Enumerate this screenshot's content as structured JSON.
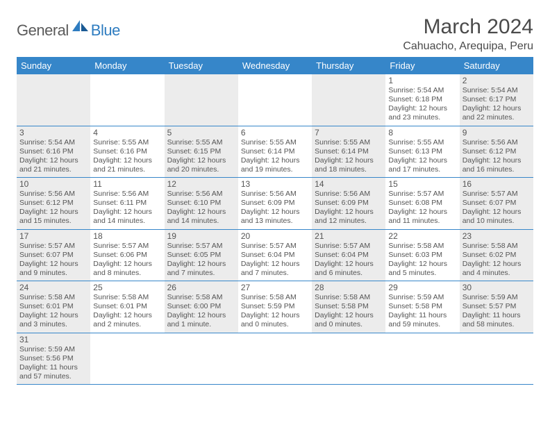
{
  "logo": {
    "part1": "General",
    "part2": "Blue"
  },
  "title": "March 2024",
  "location": "Cahuacho, Arequipa, Peru",
  "weekdays": [
    "Sunday",
    "Monday",
    "Tuesday",
    "Wednesday",
    "Thursday",
    "Friday",
    "Saturday"
  ],
  "colors": {
    "header_bg": "#3686c9",
    "header_text": "#ffffff",
    "shade_bg": "#ececec",
    "border": "#3686c9",
    "text": "#4a4a4a",
    "logo_blue": "#2e7cc0"
  },
  "weeks": [
    [
      {
        "shade": true
      },
      {},
      {
        "shade": true
      },
      {},
      {
        "shade": true
      },
      {
        "num": "1",
        "sunrise": "Sunrise: 5:54 AM",
        "sunset": "Sunset: 6:18 PM",
        "day1": "Daylight: 12 hours",
        "day2": "and 23 minutes."
      },
      {
        "shade": true,
        "num": "2",
        "sunrise": "Sunrise: 5:54 AM",
        "sunset": "Sunset: 6:17 PM",
        "day1": "Daylight: 12 hours",
        "day2": "and 22 minutes."
      }
    ],
    [
      {
        "shade": true,
        "num": "3",
        "sunrise": "Sunrise: 5:54 AM",
        "sunset": "Sunset: 6:16 PM",
        "day1": "Daylight: 12 hours",
        "day2": "and 21 minutes."
      },
      {
        "num": "4",
        "sunrise": "Sunrise: 5:55 AM",
        "sunset": "Sunset: 6:16 PM",
        "day1": "Daylight: 12 hours",
        "day2": "and 21 minutes."
      },
      {
        "shade": true,
        "num": "5",
        "sunrise": "Sunrise: 5:55 AM",
        "sunset": "Sunset: 6:15 PM",
        "day1": "Daylight: 12 hours",
        "day2": "and 20 minutes."
      },
      {
        "num": "6",
        "sunrise": "Sunrise: 5:55 AM",
        "sunset": "Sunset: 6:14 PM",
        "day1": "Daylight: 12 hours",
        "day2": "and 19 minutes."
      },
      {
        "shade": true,
        "num": "7",
        "sunrise": "Sunrise: 5:55 AM",
        "sunset": "Sunset: 6:14 PM",
        "day1": "Daylight: 12 hours",
        "day2": "and 18 minutes."
      },
      {
        "num": "8",
        "sunrise": "Sunrise: 5:55 AM",
        "sunset": "Sunset: 6:13 PM",
        "day1": "Daylight: 12 hours",
        "day2": "and 17 minutes."
      },
      {
        "shade": true,
        "num": "9",
        "sunrise": "Sunrise: 5:56 AM",
        "sunset": "Sunset: 6:12 PM",
        "day1": "Daylight: 12 hours",
        "day2": "and 16 minutes."
      }
    ],
    [
      {
        "shade": true,
        "num": "10",
        "sunrise": "Sunrise: 5:56 AM",
        "sunset": "Sunset: 6:12 PM",
        "day1": "Daylight: 12 hours",
        "day2": "and 15 minutes."
      },
      {
        "num": "11",
        "sunrise": "Sunrise: 5:56 AM",
        "sunset": "Sunset: 6:11 PM",
        "day1": "Daylight: 12 hours",
        "day2": "and 14 minutes."
      },
      {
        "shade": true,
        "num": "12",
        "sunrise": "Sunrise: 5:56 AM",
        "sunset": "Sunset: 6:10 PM",
        "day1": "Daylight: 12 hours",
        "day2": "and 14 minutes."
      },
      {
        "num": "13",
        "sunrise": "Sunrise: 5:56 AM",
        "sunset": "Sunset: 6:09 PM",
        "day1": "Daylight: 12 hours",
        "day2": "and 13 minutes."
      },
      {
        "shade": true,
        "num": "14",
        "sunrise": "Sunrise: 5:56 AM",
        "sunset": "Sunset: 6:09 PM",
        "day1": "Daylight: 12 hours",
        "day2": "and 12 minutes."
      },
      {
        "num": "15",
        "sunrise": "Sunrise: 5:57 AM",
        "sunset": "Sunset: 6:08 PM",
        "day1": "Daylight: 12 hours",
        "day2": "and 11 minutes."
      },
      {
        "shade": true,
        "num": "16",
        "sunrise": "Sunrise: 5:57 AM",
        "sunset": "Sunset: 6:07 PM",
        "day1": "Daylight: 12 hours",
        "day2": "and 10 minutes."
      }
    ],
    [
      {
        "shade": true,
        "num": "17",
        "sunrise": "Sunrise: 5:57 AM",
        "sunset": "Sunset: 6:07 PM",
        "day1": "Daylight: 12 hours",
        "day2": "and 9 minutes."
      },
      {
        "num": "18",
        "sunrise": "Sunrise: 5:57 AM",
        "sunset": "Sunset: 6:06 PM",
        "day1": "Daylight: 12 hours",
        "day2": "and 8 minutes."
      },
      {
        "shade": true,
        "num": "19",
        "sunrise": "Sunrise: 5:57 AM",
        "sunset": "Sunset: 6:05 PM",
        "day1": "Daylight: 12 hours",
        "day2": "and 7 minutes."
      },
      {
        "num": "20",
        "sunrise": "Sunrise: 5:57 AM",
        "sunset": "Sunset: 6:04 PM",
        "day1": "Daylight: 12 hours",
        "day2": "and 7 minutes."
      },
      {
        "shade": true,
        "num": "21",
        "sunrise": "Sunrise: 5:57 AM",
        "sunset": "Sunset: 6:04 PM",
        "day1": "Daylight: 12 hours",
        "day2": "and 6 minutes."
      },
      {
        "num": "22",
        "sunrise": "Sunrise: 5:58 AM",
        "sunset": "Sunset: 6:03 PM",
        "day1": "Daylight: 12 hours",
        "day2": "and 5 minutes."
      },
      {
        "shade": true,
        "num": "23",
        "sunrise": "Sunrise: 5:58 AM",
        "sunset": "Sunset: 6:02 PM",
        "day1": "Daylight: 12 hours",
        "day2": "and 4 minutes."
      }
    ],
    [
      {
        "shade": true,
        "num": "24",
        "sunrise": "Sunrise: 5:58 AM",
        "sunset": "Sunset: 6:01 PM",
        "day1": "Daylight: 12 hours",
        "day2": "and 3 minutes."
      },
      {
        "num": "25",
        "sunrise": "Sunrise: 5:58 AM",
        "sunset": "Sunset: 6:01 PM",
        "day1": "Daylight: 12 hours",
        "day2": "and 2 minutes."
      },
      {
        "shade": true,
        "num": "26",
        "sunrise": "Sunrise: 5:58 AM",
        "sunset": "Sunset: 6:00 PM",
        "day1": "Daylight: 12 hours",
        "day2": "and 1 minute."
      },
      {
        "num": "27",
        "sunrise": "Sunrise: 5:58 AM",
        "sunset": "Sunset: 5:59 PM",
        "day1": "Daylight: 12 hours",
        "day2": "and 0 minutes."
      },
      {
        "shade": true,
        "num": "28",
        "sunrise": "Sunrise: 5:58 AM",
        "sunset": "Sunset: 5:58 PM",
        "day1": "Daylight: 12 hours",
        "day2": "and 0 minutes."
      },
      {
        "num": "29",
        "sunrise": "Sunrise: 5:59 AM",
        "sunset": "Sunset: 5:58 PM",
        "day1": "Daylight: 11 hours",
        "day2": "and 59 minutes."
      },
      {
        "shade": true,
        "num": "30",
        "sunrise": "Sunrise: 5:59 AM",
        "sunset": "Sunset: 5:57 PM",
        "day1": "Daylight: 11 hours",
        "day2": "and 58 minutes."
      }
    ],
    [
      {
        "shade": true,
        "num": "31",
        "sunrise": "Sunrise: 5:59 AM",
        "sunset": "Sunset: 5:56 PM",
        "day1": "Daylight: 11 hours",
        "day2": "and 57 minutes."
      },
      {},
      {},
      {},
      {},
      {},
      {}
    ]
  ]
}
